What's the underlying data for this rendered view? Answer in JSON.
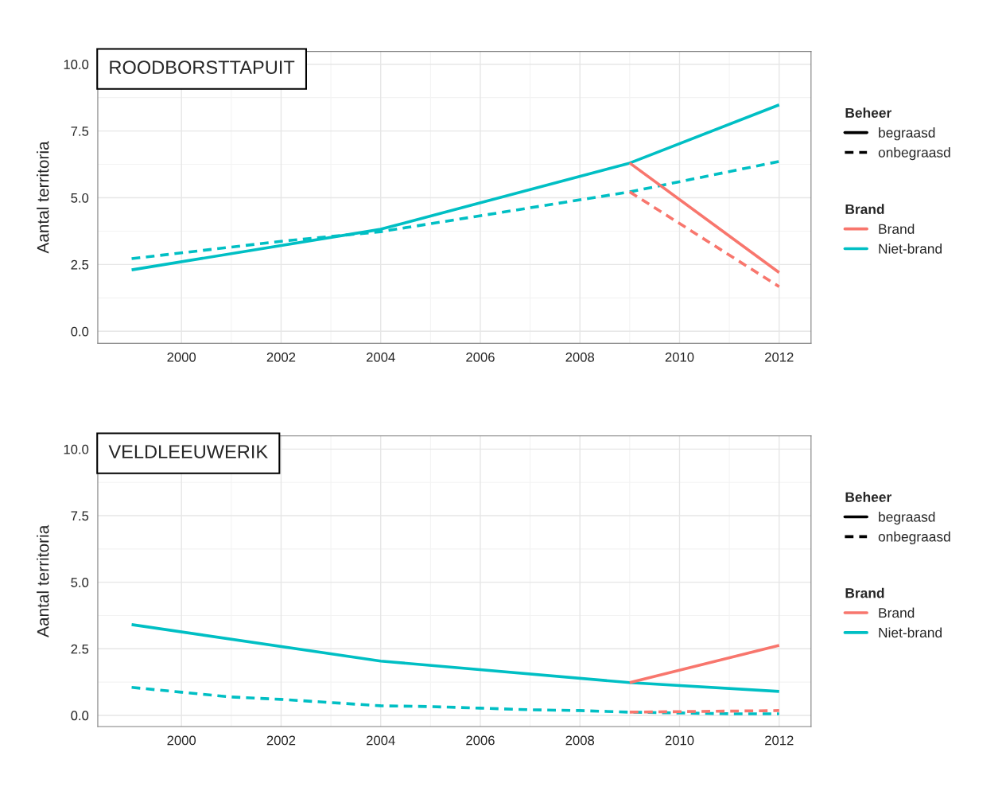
{
  "chart_data": [
    {
      "type": "line",
      "title": "ROODBORSTTAPUIT",
      "ylabel": "Aantal territoria",
      "legend": "right",
      "legend_title": [
        "Beheer",
        "Brand"
      ],
      "annotations": [
        "begraasd",
        "onbegraasd"
      ],
      "grid": true,
      "xlim": [
        1998.32,
        2012.64
      ],
      "xticks": [
        2000,
        2002,
        2004,
        2006,
        2008,
        2010,
        2012
      ],
      "ylim": [
        -0.45,
        10.48
      ],
      "yticks": [
        {
          "value": 0,
          "label": "0.0"
        },
        {
          "value": 2.5,
          "label": "2.5"
        },
        {
          "value": 5,
          "label": "5.0"
        },
        {
          "value": 7.5,
          "label": "7.5"
        },
        {
          "value": 10,
          "label": "10.0"
        }
      ],
      "series": [
        {
          "name": "Niet-brand",
          "color": "#00bfc4",
          "line_style": "solid",
          "x": [
            1999,
            2004,
            2009,
            2012
          ],
          "values": [
            2.3,
            3.82,
            6.3,
            8.48
          ]
        },
        {
          "color": "#00bfc4",
          "line_style": "dashed",
          "x": [
            1999,
            2002,
            2004,
            2009,
            2012
          ],
          "values": [
            2.72,
            3.37,
            3.73,
            5.22,
            6.36
          ]
        },
        {
          "name": "Brand",
          "color": "#f8766d",
          "line_style": "solid",
          "x": [
            2009,
            2012
          ],
          "values": [
            6.3,
            2.2
          ]
        },
        {
          "color": "#f8766d",
          "line_style": "dashed",
          "x": [
            2009,
            2012
          ],
          "values": [
            5.22,
            1.67
          ]
        }
      ]
    },
    {
      "type": "line",
      "title": "VELDLEEUWERIK",
      "ylabel": "Aantal territoria",
      "legend": "right",
      "legend_title": [
        "Beheer",
        "Brand"
      ],
      "annotations": [
        "begraasd",
        "onbegraasd"
      ],
      "grid": true,
      "xlim": [
        1998.32,
        2012.64
      ],
      "xticks": [
        2000,
        2002,
        2004,
        2006,
        2008,
        2010,
        2012
      ],
      "ylim": [
        -0.42,
        10.5
      ],
      "yticks": [
        {
          "value": 0,
          "label": "0.0"
        },
        {
          "value": 2.5,
          "label": "2.5"
        },
        {
          "value": 5,
          "label": "5.0"
        },
        {
          "value": 7.5,
          "label": "7.5"
        },
        {
          "value": 10,
          "label": "10.0"
        }
      ],
      "series": [
        {
          "name": "Niet-brand",
          "color": "#00bfc4",
          "line_style": "solid",
          "x": [
            1999,
            2004,
            2009,
            2012
          ],
          "values": [
            3.41,
            2.04,
            1.23,
            0.9
          ]
        },
        {
          "color": "#00bfc4",
          "line_style": "dashed",
          "x": [
            1999,
            2000,
            2001,
            2002,
            2003,
            2004,
            2005,
            2006,
            2007,
            2008,
            2009,
            2010,
            2011,
            2012
          ],
          "values": [
            1.05,
            0.87,
            0.69,
            0.6,
            0.48,
            0.36,
            0.33,
            0.27,
            0.21,
            0.18,
            0.12,
            0.09,
            0.06,
            0.06
          ]
        },
        {
          "name": "Brand",
          "color": "#f8766d",
          "line_style": "solid",
          "x": [
            2009,
            2012
          ],
          "values": [
            1.23,
            2.63
          ]
        },
        {
          "color": "#f8766d",
          "line_style": "dashed",
          "x": [
            2009,
            2012
          ],
          "values": [
            0.12,
            0.18
          ]
        }
      ]
    }
  ]
}
